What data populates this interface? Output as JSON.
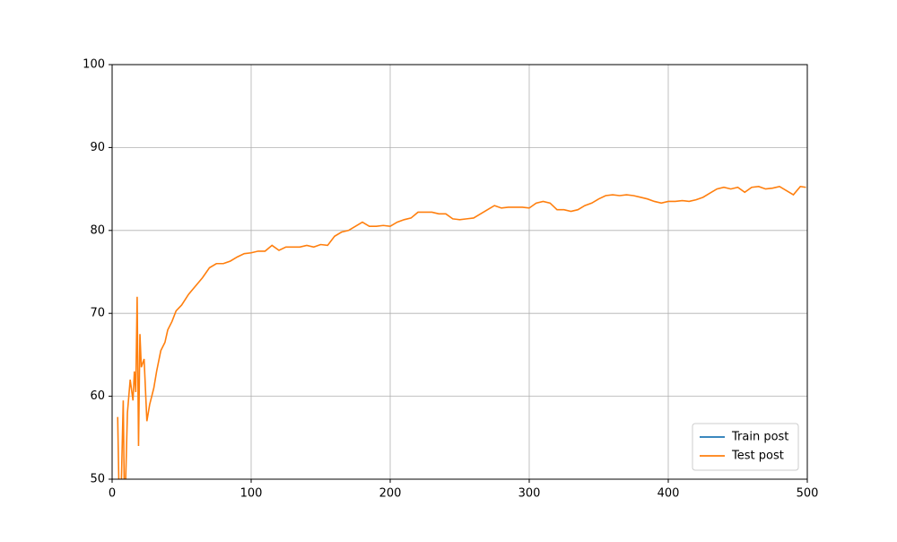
{
  "chart_data": {
    "type": "line",
    "xlim": [
      0,
      500
    ],
    "xticks": [
      0,
      100,
      200,
      300,
      400,
      500
    ],
    "ylim": [
      50,
      100
    ],
    "yticks": [
      50,
      60,
      70,
      80,
      90,
      100
    ],
    "grid": true,
    "legend": "lower right",
    "series": [
      {
        "name": "Train post",
        "color": "#1f77b4",
        "x": [],
        "values": []
      },
      {
        "name": "Test post",
        "color": "#ff7f0e",
        "x": [
          4,
          5,
          6,
          8,
          9,
          11,
          13,
          15,
          16,
          17,
          18,
          19,
          20,
          21,
          22,
          23,
          25,
          27,
          30,
          32,
          35,
          38,
          40,
          43,
          46,
          50,
          55,
          60,
          65,
          70,
          75,
          80,
          85,
          90,
          95,
          100,
          105,
          110,
          115,
          120,
          125,
          130,
          135,
          140,
          145,
          150,
          155,
          160,
          165,
          170,
          175,
          180,
          185,
          190,
          195,
          200,
          205,
          210,
          215,
          220,
          225,
          230,
          235,
          240,
          245,
          250,
          255,
          260,
          265,
          270,
          275,
          280,
          285,
          290,
          295,
          300,
          305,
          310,
          315,
          320,
          325,
          330,
          335,
          340,
          345,
          350,
          355,
          360,
          365,
          370,
          375,
          380,
          385,
          390,
          395,
          400,
          405,
          410,
          415,
          420,
          425,
          430,
          435,
          440,
          445,
          450,
          455,
          460,
          465,
          470,
          475,
          480,
          485,
          490,
          495,
          499
        ],
        "values": [
          57.5,
          48,
          45,
          59.5,
          45,
          58,
          62,
          59.5,
          63,
          60.5,
          72,
          54,
          67.5,
          63.5,
          64,
          64.5,
          57,
          59,
          61,
          63,
          65.5,
          66.5,
          68,
          69,
          70.3,
          71,
          72.3,
          73.3,
          74.3,
          75.5,
          76,
          76,
          76.3,
          76.8,
          77.2,
          77.3,
          77.5,
          77.5,
          78.2,
          77.6,
          78,
          78,
          78,
          78.2,
          78,
          78.3,
          78.2,
          79.3,
          79.8,
          80,
          80.5,
          81,
          80.5,
          80.5,
          80.6,
          80.5,
          81,
          81.3,
          81.5,
          82.2,
          82.2,
          82.2,
          82,
          82,
          81.4,
          81.3,
          81.4,
          81.5,
          82,
          82.5,
          83,
          82.7,
          82.8,
          82.8,
          82.8,
          82.7,
          83.3,
          83.5,
          83.3,
          82.5,
          82.5,
          82.3,
          82.5,
          83,
          83.3,
          83.8,
          84.2,
          84.3,
          84.2,
          84.3,
          84.2,
          84,
          83.8,
          83.5,
          83.3,
          83.5,
          83.5,
          83.6,
          83.5,
          83.7,
          84,
          84.5,
          85,
          85.2,
          85,
          85.2,
          84.6,
          85.2,
          85.3,
          85,
          85.1,
          85.3,
          84.8,
          84.3,
          85.3,
          85.2
        ]
      }
    ]
  }
}
